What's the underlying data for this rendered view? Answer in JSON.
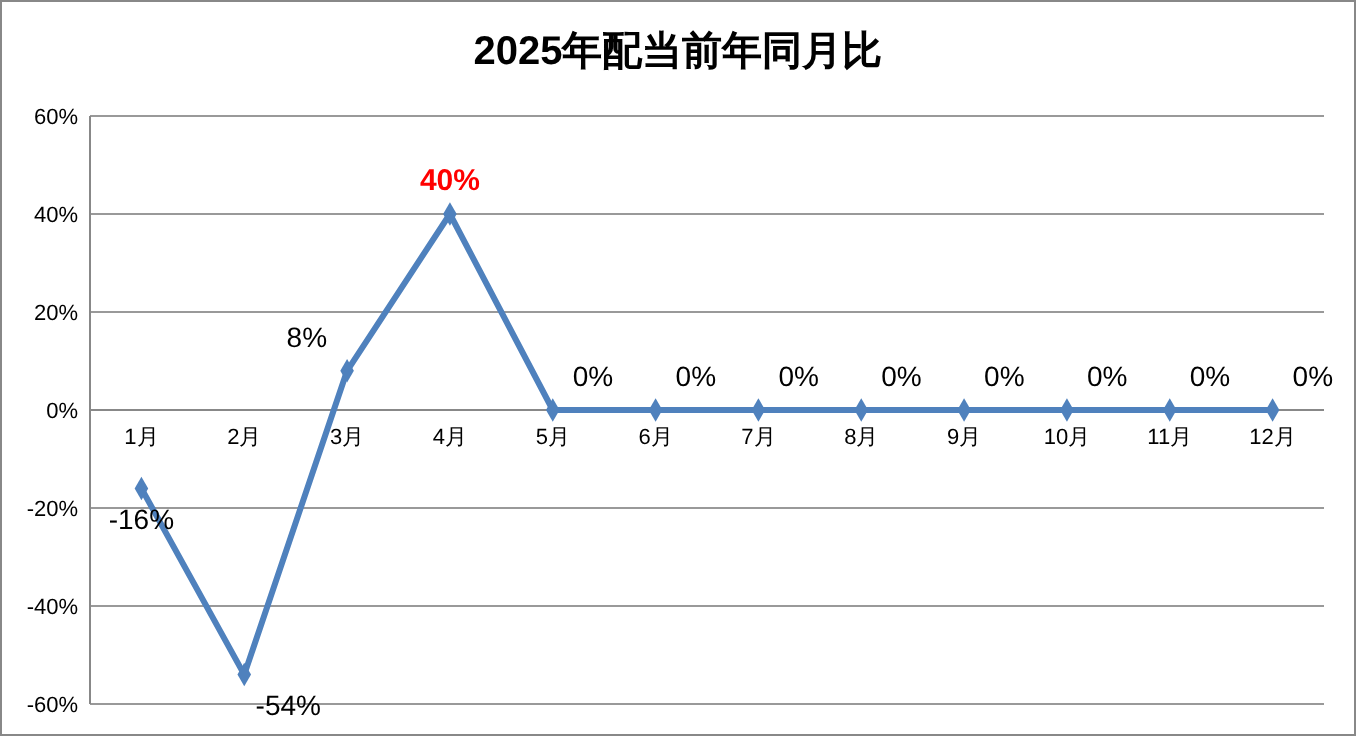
{
  "chart_data": {
    "type": "line",
    "title": "2025年配当前年同月比",
    "categories": [
      "1月",
      "2月",
      "3月",
      "4月",
      "5月",
      "6月",
      "7月",
      "8月",
      "9月",
      "10月",
      "11月",
      "12月"
    ],
    "series": [
      {
        "color": "#4f81bd",
        "values": [
          -16,
          -54,
          8,
          40,
          0,
          0,
          0,
          0,
          0,
          0,
          0,
          0
        ],
        "value_labels": [
          "-16%",
          "-54%",
          "8%",
          "40%",
          "0%",
          "0%",
          "0%",
          "0%",
          "0%",
          "0%",
          "0%",
          "0%"
        ]
      }
    ],
    "ylim": [
      -60,
      60
    ],
    "yticks": [
      {
        "value": -60,
        "label": "-60%"
      },
      {
        "value": -40,
        "label": "-40%"
      },
      {
        "value": -20,
        "label": "-20%"
      },
      {
        "value": 0,
        "label": "0%"
      },
      {
        "value": 20,
        "label": "20%"
      },
      {
        "value": 40,
        "label": "40%"
      },
      {
        "value": 60,
        "label": "60%"
      }
    ],
    "grid": "y",
    "marker": "diamond",
    "line_style": "solid"
  }
}
